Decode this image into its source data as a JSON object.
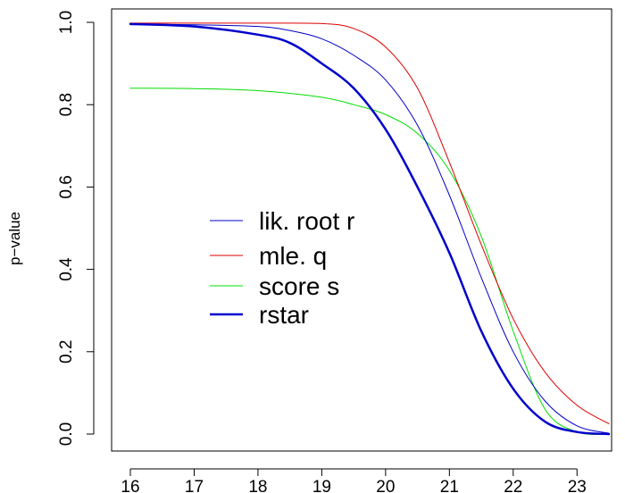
{
  "chart_data": {
    "type": "line",
    "title": "",
    "xlabel": "",
    "ylabel": "p−value",
    "xlim": [
      16,
      23.5
    ],
    "ylim": [
      0,
      1
    ],
    "x_ticks": [
      16,
      17,
      18,
      19,
      20,
      21,
      22,
      23
    ],
    "y_ticks": [
      0.0,
      0.2,
      0.4,
      0.6,
      0.8,
      1.0
    ],
    "x_tick_labels": [
      "16",
      "17",
      "18",
      "19",
      "20",
      "21",
      "22",
      "23"
    ],
    "y_tick_labels": [
      "0.0",
      "0.2",
      "0.4",
      "0.6",
      "0.8",
      "1.0"
    ],
    "grid": false,
    "legend_position": "center-left",
    "series": [
      {
        "name": "lik. root r",
        "color": "#0000cc",
        "width": 1,
        "x": [
          16,
          17,
          18,
          18.5,
          19,
          19.5,
          20,
          20.5,
          21,
          21.5,
          22,
          22.5,
          23,
          23.5
        ],
        "y": [
          0.996,
          0.994,
          0.99,
          0.98,
          0.96,
          0.92,
          0.86,
          0.75,
          0.58,
          0.38,
          0.2,
          0.08,
          0.02,
          0.002
        ]
      },
      {
        "name": "mle. q",
        "color": "#dd0000",
        "width": 1,
        "x": [
          16,
          17,
          18,
          19,
          19.5,
          20,
          20.5,
          21,
          21.5,
          22,
          22.5,
          23,
          23.5
        ],
        "y": [
          0.998,
          0.998,
          0.998,
          0.997,
          0.985,
          0.94,
          0.84,
          0.66,
          0.46,
          0.28,
          0.15,
          0.07,
          0.025
        ]
      },
      {
        "name": "score s",
        "color": "#00dd00",
        "width": 1,
        "x": [
          16,
          17,
          18,
          19,
          19.5,
          20,
          20.5,
          21,
          21.5,
          22,
          22.5,
          23,
          23.5
        ],
        "y": [
          0.84,
          0.839,
          0.834,
          0.818,
          0.8,
          0.776,
          0.73,
          0.64,
          0.48,
          0.25,
          0.06,
          0.005,
          0.0
        ]
      },
      {
        "name": "rstar",
        "color": "#0000cc",
        "width": 2.5,
        "x": [
          16,
          17,
          18,
          18.5,
          19,
          19.5,
          20,
          20.5,
          21,
          21.5,
          22,
          22.5,
          23,
          23.5
        ],
        "y": [
          0.996,
          0.99,
          0.97,
          0.95,
          0.9,
          0.84,
          0.74,
          0.6,
          0.44,
          0.25,
          0.11,
          0.03,
          0.005,
          0.0
        ]
      }
    ]
  }
}
